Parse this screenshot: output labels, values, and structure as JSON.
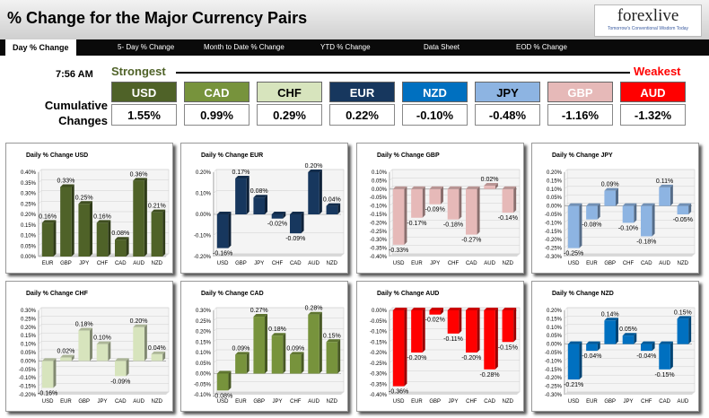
{
  "header": {
    "title": "% Change for the Major Currency Pairs",
    "logo_text": "forexlive",
    "logo_tagline": "Tomorrow's Conventional Wisdom Today"
  },
  "nav": {
    "tabs": [
      {
        "label": "Day % Change",
        "active": true
      },
      {
        "label": "5- Day % Change",
        "active": false
      },
      {
        "label": "Month to Date % Change",
        "active": false
      },
      {
        "label": "YTD % Change",
        "active": false
      },
      {
        "label": "Data Sheet",
        "active": false
      },
      {
        "label": "EOD % Change",
        "active": false
      }
    ]
  },
  "summary": {
    "time": "7:56 AM",
    "strongest_label": "Strongest",
    "weakest_label": "Weakest",
    "cumulative_label": "Cumulative Changes",
    "currencies": [
      {
        "code": "USD",
        "value": "1.55%",
        "bg": "#4f6228",
        "fg": "#ffffff"
      },
      {
        "code": "CAD",
        "value": "0.99%",
        "bg": "#77933c",
        "fg": "#ffffff"
      },
      {
        "code": "CHF",
        "value": "0.29%",
        "bg": "#d7e4bd",
        "fg": "#000000"
      },
      {
        "code": "EUR",
        "value": "0.22%",
        "bg": "#17375e",
        "fg": "#ffffff"
      },
      {
        "code": "NZD",
        "value": "-0.10%",
        "bg": "#0070c0",
        "fg": "#ffffff"
      },
      {
        "code": "JPY",
        "value": "-0.48%",
        "bg": "#8db4e2",
        "fg": "#000000"
      },
      {
        "code": "GBP",
        "value": "-1.16%",
        "bg": "#e6b9b8",
        "fg": "#ffffff"
      },
      {
        "code": "AUD",
        "value": "-1.32%",
        "bg": "#ff0000",
        "fg": "#ffffff"
      }
    ]
  },
  "chart_data": [
    {
      "type": "bar",
      "title": "Daily % Change USD",
      "color": "#4f6228",
      "categories": [
        "EUR",
        "GBP",
        "JPY",
        "CHF",
        "CAD",
        "AUD",
        "NZD"
      ],
      "values": [
        0.16,
        0.33,
        0.25,
        0.16,
        0.08,
        0.36,
        0.21
      ],
      "labels": [
        "0.16%",
        "0.33%",
        "0.25%",
        "0.16%",
        "0.08%",
        "0.36%",
        "0.21%"
      ],
      "ylim": [
        0,
        0.4
      ],
      "ticks": [
        "0.00%",
        "0.05%",
        "0.10%",
        "0.15%",
        "0.20%",
        "0.25%",
        "0.30%",
        "0.35%",
        "0.40%"
      ]
    },
    {
      "type": "bar",
      "title": "Daily % Change EUR",
      "color": "#17375e",
      "categories": [
        "USD",
        "GBP",
        "JPY",
        "CHF",
        "CAD",
        "AUD",
        "NZD"
      ],
      "values": [
        -0.16,
        0.17,
        0.08,
        -0.02,
        -0.09,
        0.2,
        0.04
      ],
      "labels": [
        "-0.16%",
        "0.17%",
        "0.08%",
        "-0.02%",
        "-0.09%",
        "0.20%",
        "0.04%"
      ],
      "ylim": [
        -0.2,
        0.2
      ],
      "ticks": [
        "-0.20%",
        "-0.10%",
        "0.00%",
        "0.10%",
        "0.20%"
      ]
    },
    {
      "type": "bar",
      "title": "Daily % Change GBP",
      "color": "#e6b9b8",
      "categories": [
        "USD",
        "EUR",
        "JPY",
        "CHF",
        "CAD",
        "AUD",
        "NZD"
      ],
      "values": [
        -0.33,
        -0.17,
        -0.09,
        -0.18,
        -0.27,
        0.02,
        -0.14
      ],
      "labels": [
        "-0.33%",
        "-0.17%",
        "-0.09%",
        "-0.18%",
        "-0.27%",
        "0.02%",
        "-0.14%"
      ],
      "ylim": [
        -0.4,
        0.1
      ],
      "ticks": [
        "-0.40%",
        "-0.35%",
        "-0.30%",
        "-0.25%",
        "-0.20%",
        "-0.15%",
        "-0.10%",
        "-0.05%",
        "0.00%",
        "0.05%",
        "0.10%"
      ]
    },
    {
      "type": "bar",
      "title": "Daily % Change JPY",
      "color": "#8db4e2",
      "categories": [
        "USD",
        "EUR",
        "GBP",
        "CHF",
        "CAD",
        "AUD",
        "NZD"
      ],
      "values": [
        -0.25,
        -0.08,
        0.09,
        -0.1,
        -0.18,
        0.11,
        -0.05
      ],
      "labels": [
        "-0.25%",
        "-0.08%",
        "0.09%",
        "-0.10%",
        "-0.18%",
        "0.11%",
        "-0.05%"
      ],
      "ylim": [
        -0.3,
        0.2
      ],
      "ticks": [
        "-0.30%",
        "-0.25%",
        "-0.20%",
        "-0.15%",
        "-0.10%",
        "-0.05%",
        "0.00%",
        "0.05%",
        "0.10%",
        "0.15%",
        "0.20%"
      ]
    },
    {
      "type": "bar",
      "title": "Daily % Change CHF",
      "color": "#d7e4bd",
      "categories": [
        "USD",
        "EUR",
        "GBP",
        "JPY",
        "CAD",
        "AUD",
        "NZD"
      ],
      "values": [
        -0.16,
        0.02,
        0.18,
        0.1,
        -0.09,
        0.2,
        0.04
      ],
      "labels": [
        "-0.16%",
        "0.02%",
        "0.18%",
        "0.10%",
        "-0.09%",
        "0.20%",
        "0.04%"
      ],
      "ylim": [
        -0.2,
        0.3
      ],
      "ticks": [
        "-0.20%",
        "-0.15%",
        "-0.10%",
        "-0.05%",
        "0.00%",
        "0.05%",
        "0.10%",
        "0.15%",
        "0.20%",
        "0.25%",
        "0.30%"
      ]
    },
    {
      "type": "bar",
      "title": "Daily % Change CAD",
      "color": "#77933c",
      "categories": [
        "USD",
        "EUR",
        "GBP",
        "JPY",
        "CHF",
        "AUD",
        "NZD"
      ],
      "values": [
        -0.08,
        0.09,
        0.27,
        0.18,
        0.09,
        0.28,
        0.15
      ],
      "labels": [
        "-0.08%",
        "0.09%",
        "0.27%",
        "0.18%",
        "0.09%",
        "0.28%",
        "0.15%"
      ],
      "ylim": [
        -0.1,
        0.3
      ],
      "ticks": [
        "-0.10%",
        "-0.05%",
        "0.00%",
        "0.05%",
        "0.10%",
        "0.15%",
        "0.20%",
        "0.25%",
        "0.30%"
      ]
    },
    {
      "type": "bar",
      "title": "Daily % Change AUD",
      "color": "#ff0000",
      "categories": [
        "USD",
        "EUR",
        "GBP",
        "JPY",
        "CHF",
        "CAD",
        "NZD"
      ],
      "values": [
        -0.36,
        -0.2,
        -0.02,
        -0.11,
        -0.2,
        -0.28,
        -0.15
      ],
      "labels": [
        "-0.36%",
        "-0.20%",
        "-0.02%",
        "-0.11%",
        "-0.20%",
        "-0.28%",
        "-0.15%"
      ],
      "ylim": [
        -0.4,
        0
      ],
      "ticks": [
        "-0.40%",
        "-0.35%",
        "-0.30%",
        "-0.25%",
        "-0.20%",
        "-0.15%",
        "-0.10%",
        "-0.05%",
        "0.00%"
      ]
    },
    {
      "type": "bar",
      "title": "Daily % Change NZD",
      "color": "#0070c0",
      "categories": [
        "USD",
        "EUR",
        "GBP",
        "JPY",
        "CHF",
        "CAD",
        "AUD"
      ],
      "values": [
        -0.21,
        -0.04,
        0.14,
        0.05,
        -0.04,
        -0.15,
        0.15
      ],
      "labels": [
        "-0.21%",
        "-0.04%",
        "0.14%",
        "0.05%",
        "-0.04%",
        "-0.15%",
        "0.15%"
      ],
      "ylim": [
        -0.3,
        0.2
      ],
      "ticks": [
        "-0.30%",
        "-0.25%",
        "-0.20%",
        "-0.15%",
        "-0.10%",
        "-0.05%",
        "0.00%",
        "0.05%",
        "0.10%",
        "0.15%",
        "0.20%"
      ]
    }
  ]
}
